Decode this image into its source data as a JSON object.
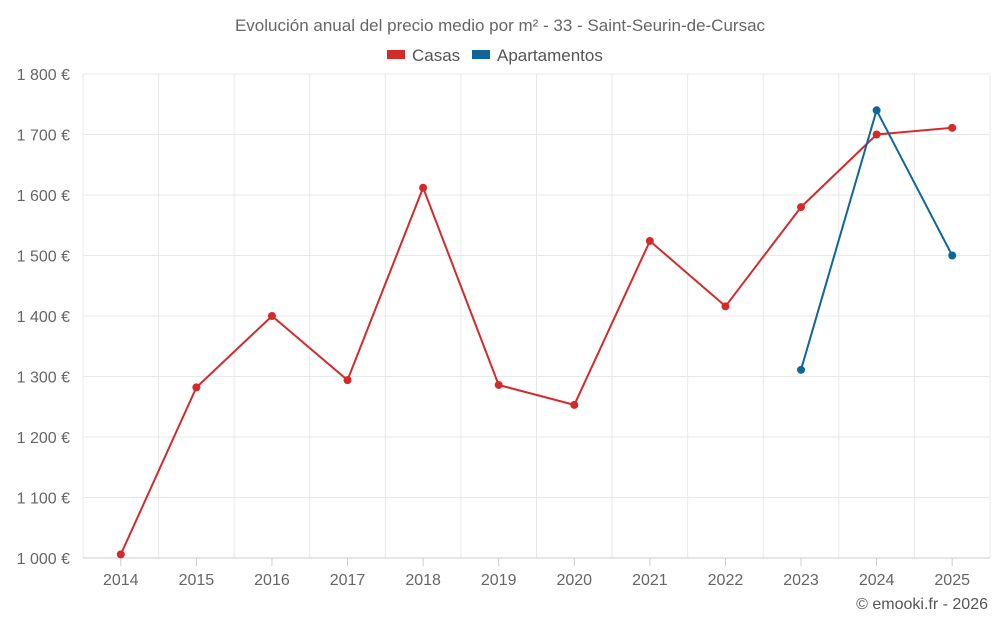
{
  "chart_data": {
    "type": "line",
    "title": "Evolución anual del precio medio por m² - 33 - Saint-Seurin-de-Cursac",
    "x": [
      "2014",
      "2015",
      "2016",
      "2017",
      "2018",
      "2019",
      "2020",
      "2021",
      "2022",
      "2023",
      "2024",
      "2025"
    ],
    "ylim": [
      1000,
      1800
    ],
    "yticks": [
      1000,
      1100,
      1200,
      1300,
      1400,
      1500,
      1600,
      1700,
      1800
    ],
    "ytick_labels": [
      "1 000 €",
      "1 100 €",
      "1 200 €",
      "1 300 €",
      "1 400 €",
      "1 500 €",
      "1 600 €",
      "1 700 €",
      "1 800 €"
    ],
    "grid": true,
    "legend": "top-center",
    "series": [
      {
        "name": "Casas",
        "color": "#d42a2a",
        "values": [
          1006,
          1282,
          1400,
          1294,
          1612,
          1286,
          1253,
          1524,
          1416,
          1580,
          1700,
          1711
        ]
      },
      {
        "name": "Apartamentos",
        "color": "#0e6699",
        "values": [
          null,
          null,
          null,
          null,
          null,
          null,
          null,
          null,
          null,
          1311,
          1740,
          1500
        ]
      }
    ]
  },
  "credit": "© emooki.fr - 2026"
}
